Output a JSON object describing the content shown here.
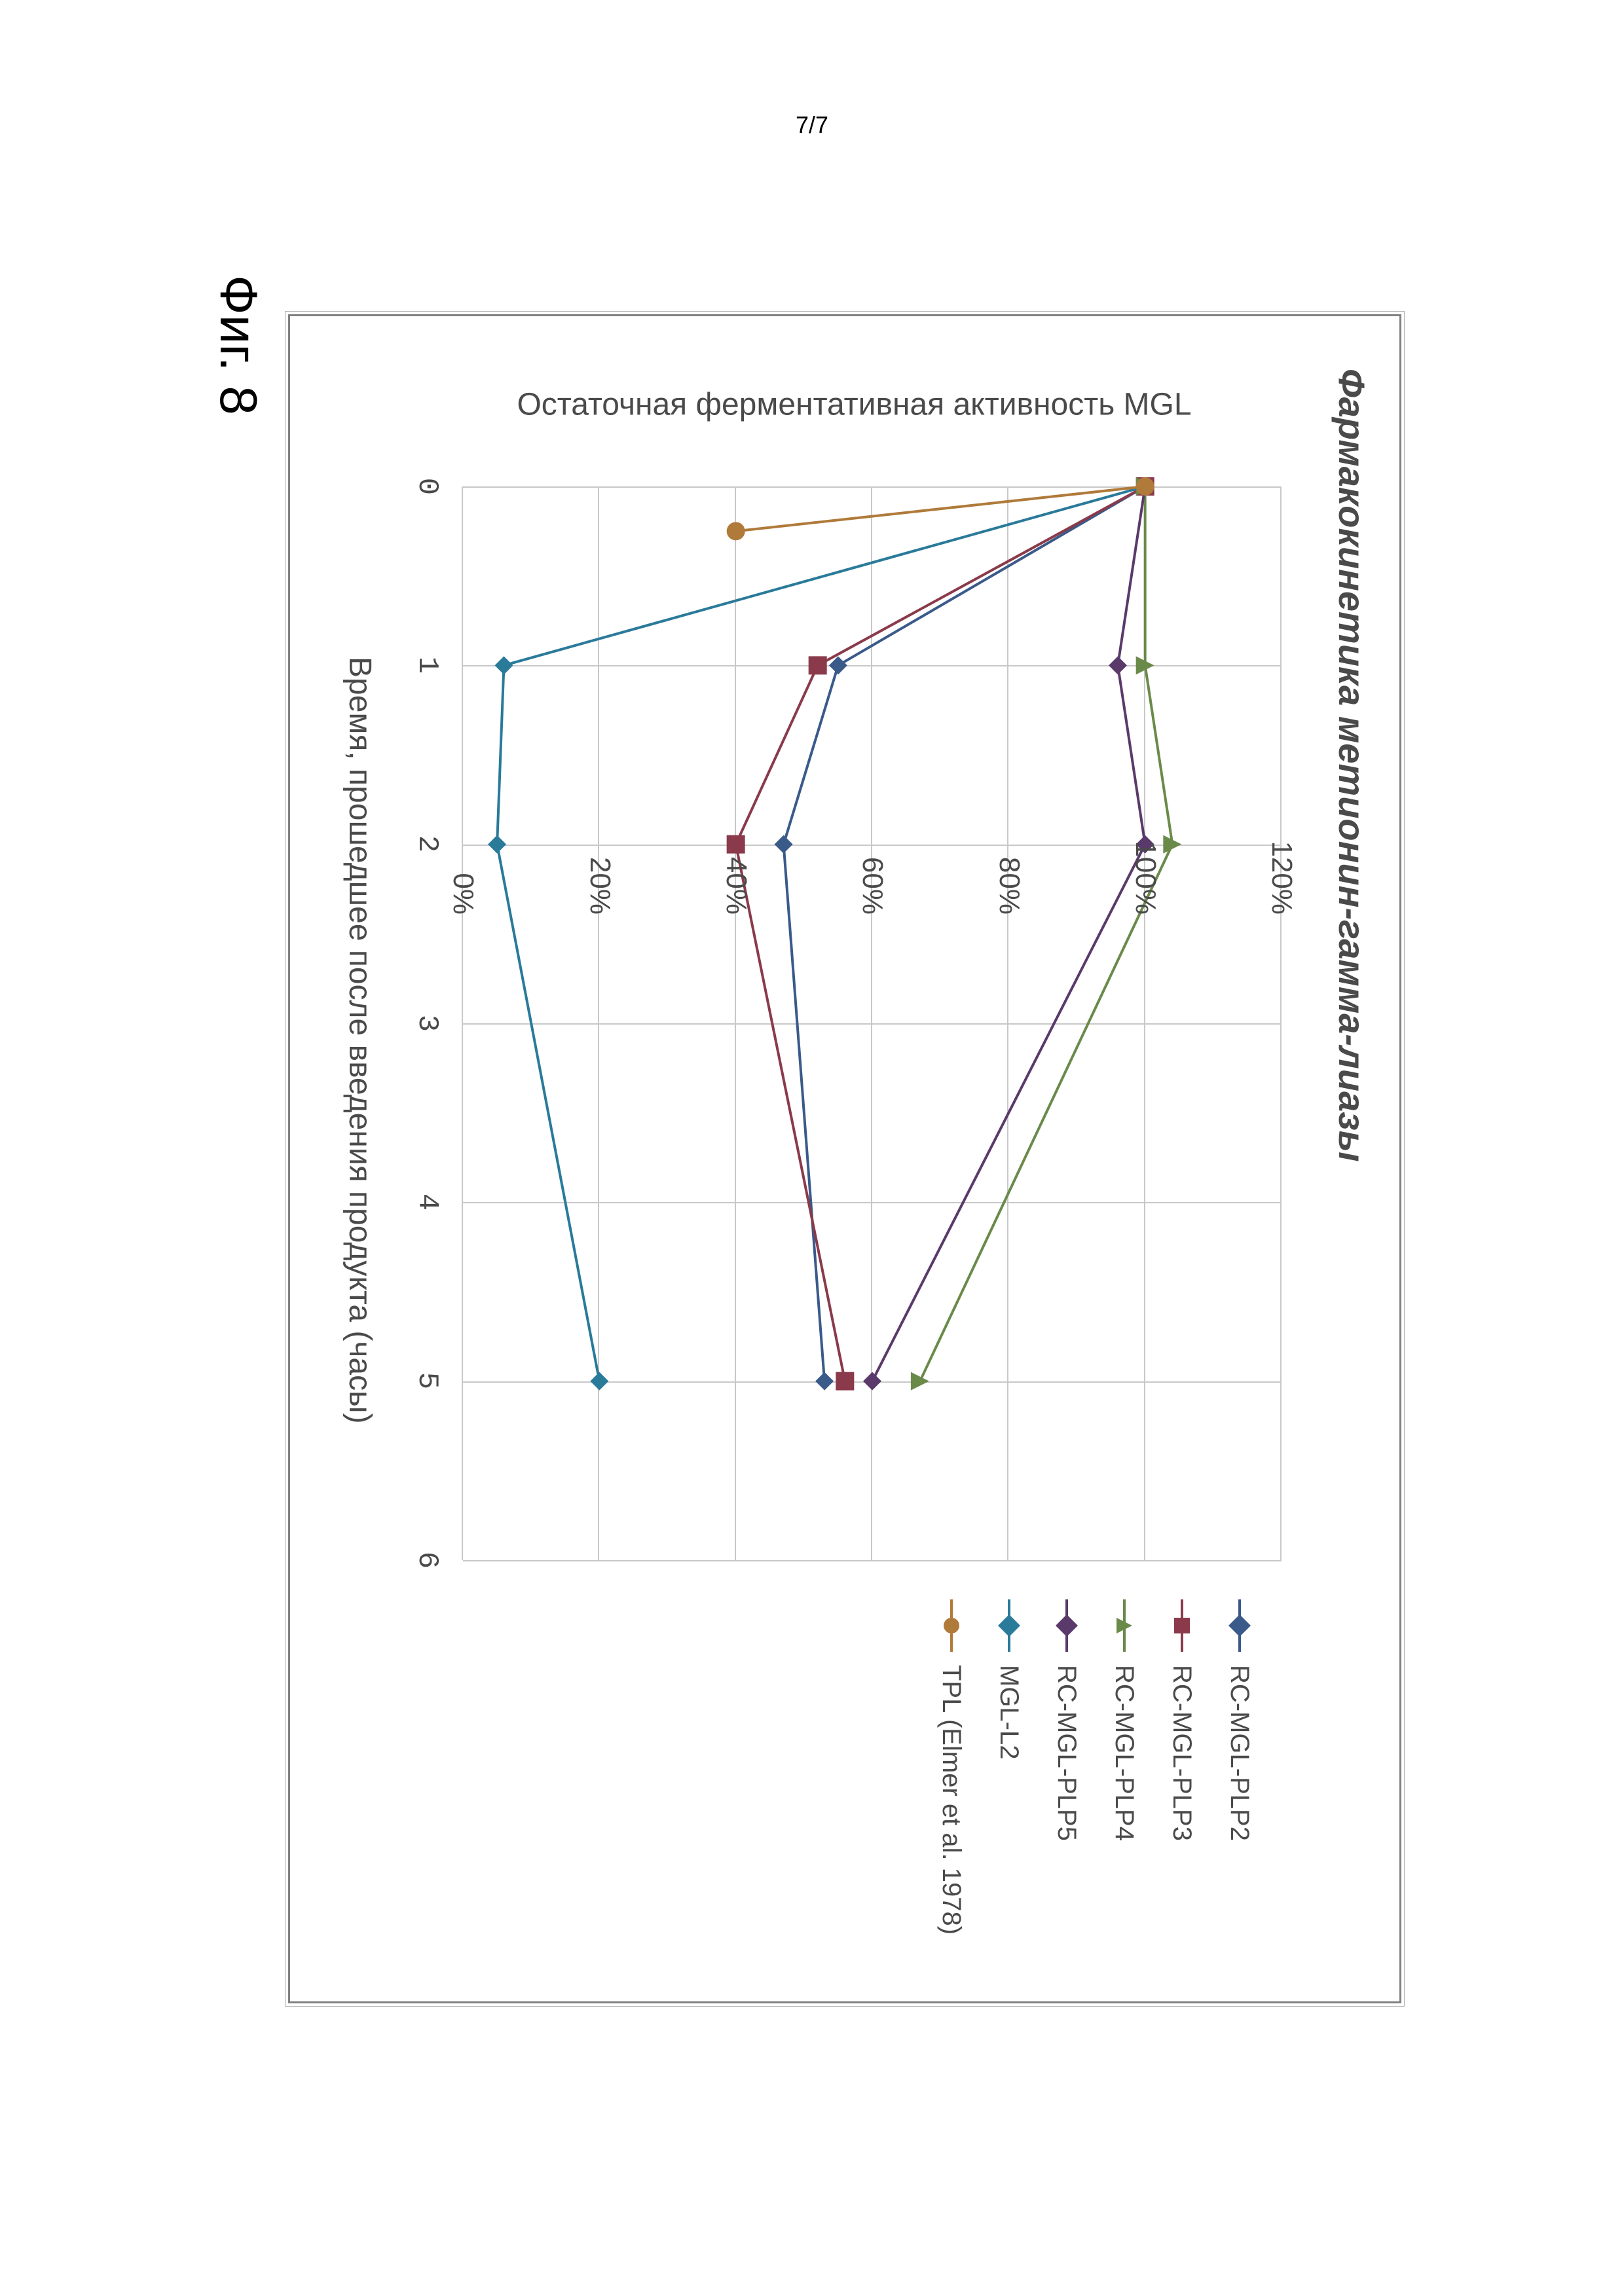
{
  "page_number": "7/7",
  "figure_caption": "Фиг. 8",
  "chart": {
    "type": "line",
    "title": "Фармакокинетика метионин-гамма-лиазы",
    "x_axis": {
      "title": "Время, прошедшее после введения продукта (часы)",
      "ticks": [
        0,
        1,
        2,
        3,
        4,
        5,
        6
      ],
      "tick_labels": [
        "0",
        "1",
        "2",
        "3",
        "4",
        "5",
        "6"
      ],
      "min": 0,
      "max": 6
    },
    "y_axis": {
      "title": "Остаточная ферментативная активность MGL",
      "ticks": [
        0,
        20,
        40,
        60,
        80,
        100,
        120
      ],
      "tick_labels": [
        "0%",
        "20%",
        "40%",
        "60%",
        "80%",
        "100%",
        "120%"
      ],
      "min": 0,
      "max": 120
    },
    "grid_color": "#c8c8c8",
    "background_color": "#ffffff",
    "border_color": "#808080",
    "text_color": "#4a4a4a",
    "title_fontsize": 56,
    "label_fontsize": 48,
    "tick_fontsize": 44,
    "legend_fontsize": 40,
    "marker_size": 14,
    "line_width": 4,
    "series": [
      {
        "name": "RC-MGL-PLP2",
        "color": "#3a5a8a",
        "marker": "diamond",
        "x": [
          0,
          1,
          2,
          5
        ],
        "y": [
          100,
          55,
          47,
          53
        ]
      },
      {
        "name": "RC-MGL-PLP3",
        "color": "#8a3a4a",
        "marker": "square",
        "x": [
          0,
          1,
          2,
          5
        ],
        "y": [
          100,
          52,
          40,
          56
        ]
      },
      {
        "name": "RC-MGL-PLP4",
        "color": "#6a8a4a",
        "marker": "triangle",
        "x": [
          0,
          1,
          2,
          5
        ],
        "y": [
          100,
          100,
          104,
          67
        ]
      },
      {
        "name": "RC-MGL-PLP5",
        "color": "#5a3a6a",
        "marker": "diamond",
        "x": [
          0,
          1,
          2,
          5
        ],
        "y": [
          100,
          96,
          100,
          60
        ]
      },
      {
        "name": "MGL-L2",
        "color": "#2a7a9a",
        "marker": "diamond",
        "x": [
          0,
          1,
          2,
          5
        ],
        "y": [
          100,
          6,
          5,
          20
        ]
      },
      {
        "name": "TPL (Elmer et al. 1978)",
        "color": "#b07a3a",
        "marker": "circle",
        "x": [
          0,
          0.25
        ],
        "y": [
          100,
          40
        ]
      }
    ],
    "legend_position": "right"
  }
}
